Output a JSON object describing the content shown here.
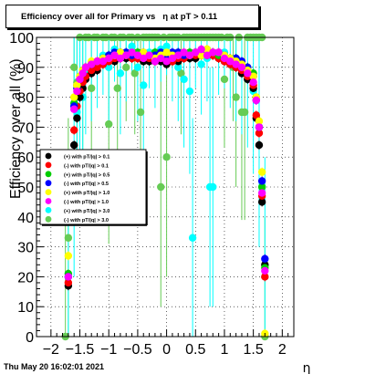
{
  "title": "Efficiency over all for Primary vs   η at pT > 0.11",
  "timestamp": "Thu May 20 16:02:01 2021",
  "chart_data": {
    "type": "scatter",
    "xlabel": "η",
    "ylabel": "Efficiency over all (%)",
    "xlim": [
      -2.25,
      2.2
    ],
    "ylim": [
      0,
      100
    ],
    "xticks": [
      -2,
      -1.5,
      -1,
      -0.5,
      0,
      0.5,
      1,
      1.5,
      2
    ],
    "xtick_labels": [
      "−2",
      "−1.5",
      "−1",
      "−0.5",
      "0",
      "0.5",
      "1",
      "1.5",
      "2"
    ],
    "yticks": [
      0,
      10,
      20,
      30,
      40,
      50,
      60,
      70,
      80,
      90,
      100
    ],
    "ytick_labels": [
      "0",
      "10",
      "20",
      "30",
      "40",
      "50",
      "60",
      "70",
      "80",
      "90",
      "100"
    ],
    "grid": true,
    "legend_position": "left-middle",
    "series": [
      {
        "name": "(+) with pT/|q| > 0.1",
        "color": "#000000",
        "x": [
          -1.7,
          -1.65,
          -1.6,
          -1.55,
          -1.5,
          -1.45,
          -1.4,
          -1.3,
          -1.2,
          -1.1,
          -1.0,
          -0.9,
          -0.8,
          -0.7,
          -0.6,
          -0.5,
          -0.4,
          -0.3,
          -0.2,
          -0.1,
          0.0,
          0.1,
          0.2,
          0.3,
          0.4,
          0.5,
          0.6,
          0.7,
          0.8,
          0.9,
          1.0,
          1.1,
          1.2,
          1.3,
          1.4,
          1.5,
          1.55,
          1.6,
          1.65,
          1.7
        ],
        "y": [
          17,
          45,
          64,
          73,
          80,
          83,
          86,
          88,
          89,
          91,
          92,
          92,
          93,
          93,
          93,
          93,
          92,
          92,
          92,
          92,
          91,
          92,
          92,
          93,
          93,
          93,
          94,
          94,
          94,
          93,
          92,
          91,
          90,
          88,
          86,
          83,
          73,
          64,
          45,
          24
        ]
      },
      {
        "name": "(-) with pT/|q| > 0.1",
        "color": "#ff0000",
        "x": [
          -1.7,
          -1.65,
          -1.6,
          -1.55,
          -1.5,
          -1.45,
          -1.4,
          -1.3,
          -1.2,
          -1.1,
          -1.0,
          -0.9,
          -0.8,
          -0.7,
          -0.6,
          -0.5,
          -0.4,
          -0.3,
          -0.2,
          -0.1,
          0.0,
          0.1,
          0.2,
          0.3,
          0.4,
          0.5,
          0.6,
          0.7,
          0.8,
          0.9,
          1.0,
          1.1,
          1.2,
          1.3,
          1.4,
          1.5,
          1.55,
          1.6,
          1.65,
          1.7
        ],
        "y": [
          18,
          48,
          69,
          77,
          82,
          85,
          87,
          89,
          90,
          91,
          92,
          93,
          93,
          94,
          93,
          93,
          93,
          93,
          92,
          93,
          93,
          92,
          93,
          93,
          94,
          94,
          94,
          94,
          94,
          93,
          92,
          91,
          90,
          89,
          87,
          84,
          74,
          68,
          47,
          20
        ]
      },
      {
        "name": "(+) with pT/|q| > 0.5",
        "color": "#00cc00",
        "x": [
          -1.7,
          -1.65,
          -1.6,
          -1.55,
          -1.5,
          -1.45,
          -1.4,
          -1.3,
          -1.2,
          -1.1,
          -1.0,
          -0.9,
          -0.8,
          -0.7,
          -0.6,
          -0.5,
          -0.4,
          -0.3,
          -0.2,
          -0.1,
          0.0,
          0.1,
          0.2,
          0.3,
          0.4,
          0.5,
          0.6,
          0.7,
          0.8,
          0.9,
          1.0,
          1.1,
          1.2,
          1.3,
          1.4,
          1.5,
          1.55,
          1.6,
          1.65,
          1.7
        ],
        "y": [
          21,
          52,
          78,
          84,
          87,
          89,
          90,
          91,
          92,
          93,
          94,
          94,
          95,
          95,
          94,
          95,
          94,
          94,
          95,
          94,
          94,
          94,
          95,
          94,
          95,
          95,
          95,
          96,
          95,
          94,
          94,
          93,
          93,
          91,
          90,
          88,
          80,
          70,
          50,
          23
        ]
      },
      {
        "name": "(-) with pT/|q| > 0.5",
        "color": "#0000ff",
        "x": [
          -1.7,
          -1.65,
          -1.6,
          -1.55,
          -1.5,
          -1.45,
          -1.4,
          -1.3,
          -1.2,
          -1.1,
          -1.0,
          -0.9,
          -0.8,
          -0.7,
          -0.6,
          -0.5,
          -0.4,
          -0.3,
          -0.2,
          -0.1,
          0.0,
          0.1,
          0.2,
          0.3,
          0.4,
          0.5,
          0.6,
          0.7,
          0.8,
          0.9,
          1.0,
          1.1,
          1.2,
          1.3,
          1.4,
          1.5,
          1.55,
          1.6,
          1.65,
          1.7
        ],
        "y": [
          20,
          55,
          77,
          83,
          86,
          88,
          90,
          91,
          92,
          93,
          94,
          95,
          95,
          95,
          94,
          94,
          95,
          94,
          94,
          95,
          94,
          95,
          95,
          94,
          94,
          95,
          95,
          95,
          95,
          95,
          94,
          93,
          93,
          92,
          90,
          87,
          79,
          70,
          52,
          26
        ]
      },
      {
        "name": "(+) with pT/|q| > 1.0",
        "color": "#ffff00",
        "x": [
          -1.7,
          -1.65,
          -1.6,
          -1.55,
          -1.5,
          -1.45,
          -1.4,
          -1.3,
          -1.2,
          -1.1,
          -1.0,
          -0.9,
          -0.8,
          -0.7,
          -0.6,
          -0.5,
          -0.4,
          -0.3,
          -0.2,
          -0.1,
          0.0,
          0.1,
          0.2,
          0.3,
          0.4,
          0.5,
          0.6,
          0.7,
          0.8,
          0.9,
          1.0,
          1.1,
          1.2,
          1.3,
          1.4,
          1.5,
          1.55,
          1.6,
          1.65,
          1.7
        ],
        "y": [
          27,
          58,
          80,
          84,
          87,
          89,
          90,
          92,
          92,
          93,
          93,
          94,
          95,
          94,
          95,
          94,
          95,
          94,
          93,
          94,
          95,
          94,
          94,
          95,
          94,
          95,
          94,
          96,
          95,
          95,
          94,
          93,
          92,
          91,
          89,
          87,
          80,
          72,
          55,
          1
        ]
      },
      {
        "name": "(-) with pT/|q| > 1.0",
        "color": "#ff00ff",
        "x": [
          -1.7,
          -1.65,
          -1.6,
          -1.55,
          -1.5,
          -1.45,
          -1.4,
          -1.3,
          -1.2,
          -1.1,
          -1.0,
          -0.9,
          -0.8,
          -0.7,
          -0.6,
          -0.5,
          -0.4,
          -0.3,
          -0.2,
          -0.1,
          0.0,
          0.1,
          0.2,
          0.3,
          0.4,
          0.5,
          0.6,
          0.7,
          0.8,
          0.9,
          1.0,
          1.1,
          1.2,
          1.3,
          1.4,
          1.5,
          1.55,
          1.6,
          1.65,
          1.7
        ],
        "y": [
          20,
          50,
          76,
          82,
          86,
          88,
          90,
          91,
          92,
          92,
          93,
          94,
          93,
          94,
          95,
          94,
          93,
          94,
          92,
          93,
          92,
          93,
          94,
          95,
          94,
          95,
          96,
          94,
          95,
          95,
          93,
          92,
          91,
          90,
          88,
          85,
          79,
          70,
          48,
          22
        ]
      },
      {
        "name": "(+) with pT/|q| > 3.0",
        "color": "#00ffff",
        "x": [
          -1.7,
          -1.6,
          -1.55,
          -1.5,
          -1.45,
          -1.4,
          -1.3,
          -1.2,
          -1.1,
          -1.0,
          -0.9,
          -0.8,
          -0.7,
          -0.6,
          -0.5,
          -0.4,
          -0.3,
          -0.2,
          -0.1,
          0.0,
          0.1,
          0.2,
          0.3,
          0.4,
          0.45,
          0.5,
          0.6,
          0.7,
          0.75,
          0.8,
          0.9,
          1.0,
          1.1,
          1.2,
          1.3,
          1.4,
          1.5,
          1.6,
          1.7
        ],
        "y": [
          20,
          60,
          75,
          85,
          80,
          88,
          90,
          92,
          94,
          90,
          96,
          88,
          93,
          97,
          90,
          84,
          95,
          92,
          96,
          97,
          93,
          90,
          86,
          82,
          33,
          95,
          91,
          93,
          50,
          50,
          94,
          95,
          92,
          90,
          88,
          86,
          82,
          70,
          20
        ]
      },
      {
        "name": "(-) with pT/|q| > 3.0",
        "color": "#66cc55",
        "x": [
          -1.75,
          -1.7,
          -1.6,
          -1.55,
          -1.5,
          -1.45,
          -1.4,
          -1.35,
          -1.3,
          -1.25,
          -1.2,
          -1.1,
          -1.05,
          -1.0,
          -0.95,
          -0.9,
          -0.85,
          -0.8,
          -0.75,
          -0.7,
          -0.65,
          -0.6,
          -0.55,
          -0.5,
          -0.45,
          -0.4,
          -0.35,
          -0.3,
          -0.25,
          -0.2,
          -0.15,
          -0.1,
          -0.05,
          0.0,
          0.05,
          0.1,
          0.15,
          0.2,
          0.25,
          0.3,
          0.35,
          0.4,
          0.45,
          0.5,
          0.55,
          0.6,
          0.65,
          0.7,
          0.75,
          0.8,
          0.85,
          0.9,
          0.95,
          1.0,
          1.05,
          1.1,
          1.15,
          1.2,
          1.25,
          1.3,
          1.35,
          1.4,
          1.45,
          1.5,
          1.55,
          1.6,
          1.65,
          1.7
        ],
        "y": [
          0,
          33,
          90,
          85,
          100,
          80,
          100,
          100,
          83,
          100,
          100,
          100,
          100,
          71,
          100,
          100,
          83,
          100,
          100,
          90,
          100,
          100,
          88,
          100,
          75,
          100,
          100,
          100,
          100,
          100,
          100,
          50,
          100,
          60,
          100,
          100,
          100,
          100,
          88,
          100,
          100,
          100,
          100,
          100,
          100,
          100,
          100,
          100,
          100,
          100,
          100,
          100,
          100,
          86,
          100,
          100,
          90,
          80,
          100,
          75,
          75,
          100,
          100,
          100,
          100,
          100,
          100,
          0
        ]
      }
    ]
  }
}
